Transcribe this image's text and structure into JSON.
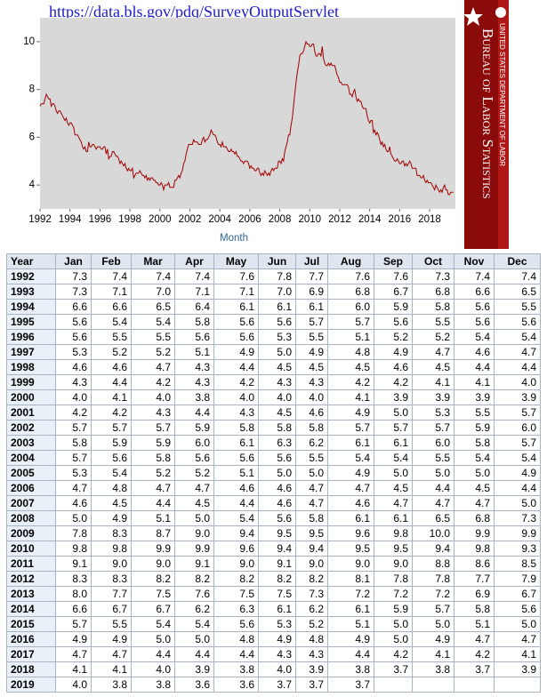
{
  "url": "https://data.bls.gov/pdq/SurveyOutputServlet",
  "logo": {
    "department": "UNITED STATES DEPARTMENT OF LABOR",
    "agency": "Bureau of Labor Statistics"
  },
  "chart_data": {
    "type": "line",
    "xlabel": "Month",
    "color": "#a00000",
    "xlim": [
      1992,
      2019.6
    ],
    "xticks": [
      1992,
      1994,
      1996,
      1998,
      2000,
      2002,
      2004,
      2006,
      2008,
      2010,
      2012,
      2014,
      2016,
      2018
    ],
    "ylim": [
      3,
      11
    ],
    "yticks": [
      4,
      6,
      8,
      10
    ]
  },
  "table": {
    "header": [
      "Year",
      "Jan",
      "Feb",
      "Mar",
      "Apr",
      "May",
      "Jun",
      "Jul",
      "Aug",
      "Sep",
      "Oct",
      "Nov",
      "Dec"
    ],
    "rows": [
      [
        1992,
        7.3,
        7.4,
        7.4,
        7.4,
        7.6,
        7.8,
        7.7,
        7.6,
        7.6,
        7.3,
        7.4,
        7.4
      ],
      [
        1993,
        7.3,
        7.1,
        7.0,
        7.1,
        7.1,
        7.0,
        6.9,
        6.8,
        6.7,
        6.8,
        6.6,
        6.5
      ],
      [
        1994,
        6.6,
        6.6,
        6.5,
        6.4,
        6.1,
        6.1,
        6.1,
        6.0,
        5.9,
        5.8,
        5.6,
        5.5
      ],
      [
        1995,
        5.6,
        5.4,
        5.4,
        5.8,
        5.6,
        5.6,
        5.7,
        5.7,
        5.6,
        5.5,
        5.6,
        5.6
      ],
      [
        1996,
        5.6,
        5.5,
        5.5,
        5.6,
        5.6,
        5.3,
        5.5,
        5.1,
        5.2,
        5.2,
        5.4,
        5.4
      ],
      [
        1997,
        5.3,
        5.2,
        5.2,
        5.1,
        4.9,
        5.0,
        4.9,
        4.8,
        4.9,
        4.7,
        4.6,
        4.7
      ],
      [
        1998,
        4.6,
        4.6,
        4.7,
        4.3,
        4.4,
        4.5,
        4.5,
        4.5,
        4.6,
        4.5,
        4.4,
        4.4
      ],
      [
        1999,
        4.3,
        4.4,
        4.2,
        4.3,
        4.2,
        4.3,
        4.3,
        4.2,
        4.2,
        4.1,
        4.1,
        4.0
      ],
      [
        2000,
        4.0,
        4.1,
        4.0,
        3.8,
        4.0,
        4.0,
        4.0,
        4.1,
        3.9,
        3.9,
        3.9,
        3.9
      ],
      [
        2001,
        4.2,
        4.2,
        4.3,
        4.4,
        4.3,
        4.5,
        4.6,
        4.9,
        5.0,
        5.3,
        5.5,
        5.7
      ],
      [
        2002,
        5.7,
        5.7,
        5.7,
        5.9,
        5.8,
        5.8,
        5.8,
        5.7,
        5.7,
        5.7,
        5.9,
        6.0
      ],
      [
        2003,
        5.8,
        5.9,
        5.9,
        6.0,
        6.1,
        6.3,
        6.2,
        6.1,
        6.1,
        6.0,
        5.8,
        5.7
      ],
      [
        2004,
        5.7,
        5.6,
        5.8,
        5.6,
        5.6,
        5.6,
        5.5,
        5.4,
        5.4,
        5.5,
        5.4,
        5.4
      ],
      [
        2005,
        5.3,
        5.4,
        5.2,
        5.2,
        5.1,
        5.0,
        5.0,
        4.9,
        5.0,
        5.0,
        5.0,
        4.9
      ],
      [
        2006,
        4.7,
        4.8,
        4.7,
        4.7,
        4.6,
        4.6,
        4.7,
        4.7,
        4.5,
        4.4,
        4.5,
        4.4
      ],
      [
        2007,
        4.6,
        4.5,
        4.4,
        4.5,
        4.4,
        4.6,
        4.7,
        4.6,
        4.7,
        4.7,
        4.7,
        5.0
      ],
      [
        2008,
        5.0,
        4.9,
        5.1,
        5.0,
        5.4,
        5.6,
        5.8,
        6.1,
        6.1,
        6.5,
        6.8,
        7.3
      ],
      [
        2009,
        7.8,
        8.3,
        8.7,
        9.0,
        9.4,
        9.5,
        9.5,
        9.6,
        9.8,
        10.0,
        9.9,
        9.9
      ],
      [
        2010,
        9.8,
        9.8,
        9.9,
        9.9,
        9.6,
        9.4,
        9.4,
        9.5,
        9.5,
        9.4,
        9.8,
        9.3
      ],
      [
        2011,
        9.1,
        9.0,
        9.0,
        9.1,
        9.0,
        9.1,
        9.0,
        9.0,
        9.0,
        8.8,
        8.6,
        8.5
      ],
      [
        2012,
        8.3,
        8.3,
        8.2,
        8.2,
        8.2,
        8.2,
        8.2,
        8.1,
        7.8,
        7.8,
        7.7,
        7.9
      ],
      [
        2013,
        8.0,
        7.7,
        7.5,
        7.6,
        7.5,
        7.5,
        7.3,
        7.2,
        7.2,
        7.2,
        6.9,
        6.7
      ],
      [
        2014,
        6.6,
        6.7,
        6.7,
        6.2,
        6.3,
        6.1,
        6.2,
        6.1,
        5.9,
        5.7,
        5.8,
        5.6
      ],
      [
        2015,
        5.7,
        5.5,
        5.4,
        5.4,
        5.6,
        5.3,
        5.2,
        5.1,
        5.0,
        5.0,
        5.1,
        5.0
      ],
      [
        2016,
        4.9,
        4.9,
        5.0,
        5.0,
        4.8,
        4.9,
        4.8,
        4.9,
        5.0,
        4.9,
        4.7,
        4.7
      ],
      [
        2017,
        4.7,
        4.7,
        4.4,
        4.4,
        4.4,
        4.3,
        4.3,
        4.4,
        4.2,
        4.1,
        4.2,
        4.1
      ],
      [
        2018,
        4.1,
        4.1,
        4.0,
        3.9,
        3.8,
        4.0,
        3.9,
        3.8,
        3.7,
        3.8,
        3.7,
        3.9
      ],
      [
        2019,
        4.0,
        3.8,
        3.8,
        3.6,
        3.6,
        3.7,
        3.7,
        3.7,
        null,
        null,
        null,
        null
      ]
    ]
  }
}
